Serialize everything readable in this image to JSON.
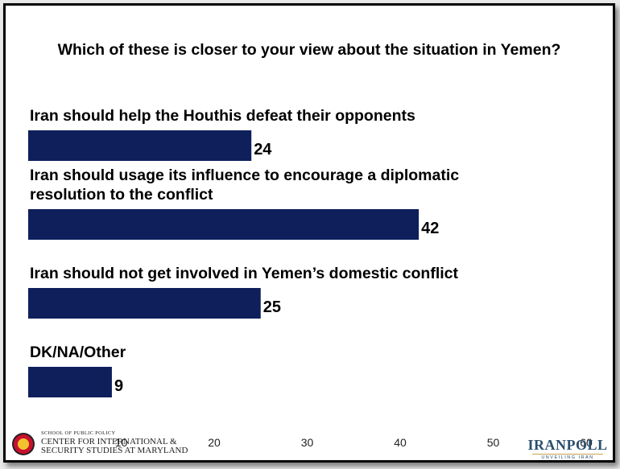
{
  "title": "Which of these is closer to your view about the situation in Yemen?",
  "chart_data": {
    "type": "bar",
    "orientation": "horizontal",
    "categories": [
      "Iran should help the Houthis defeat their opponents",
      "Iran should usage its influence to encourage a diplomatic resolution to the conflict",
      "Iran should not get involved in Yemen’s domestic conflict",
      "DK/NA/Other"
    ],
    "category_lines": [
      [
        "Iran should help the Houthis defeat their opponents"
      ],
      [
        "Iran should usage its influence to encourage a diplomatic",
        "resolution to the conflict"
      ],
      [
        "Iran should not get involved in Yemen’s domestic conflict"
      ],
      [
        "DK/NA/Other"
      ]
    ],
    "values": [
      24,
      42,
      25,
      9
    ],
    "xlim": [
      0,
      60
    ],
    "xticks": [
      10,
      20,
      30,
      40,
      50,
      60
    ],
    "grid": false,
    "legend": "none",
    "bar_color": "#0e1f5b"
  },
  "logos": {
    "left": {
      "school": "SCHOOL OF PUBLIC POLICY",
      "center": "CENTER FOR INTERNATIONAL &\nSECURITY STUDIES AT MARYLAND"
    },
    "right": {
      "brand": "IRANPOLL",
      "tagline": "UNVEILING IRAN"
    }
  }
}
